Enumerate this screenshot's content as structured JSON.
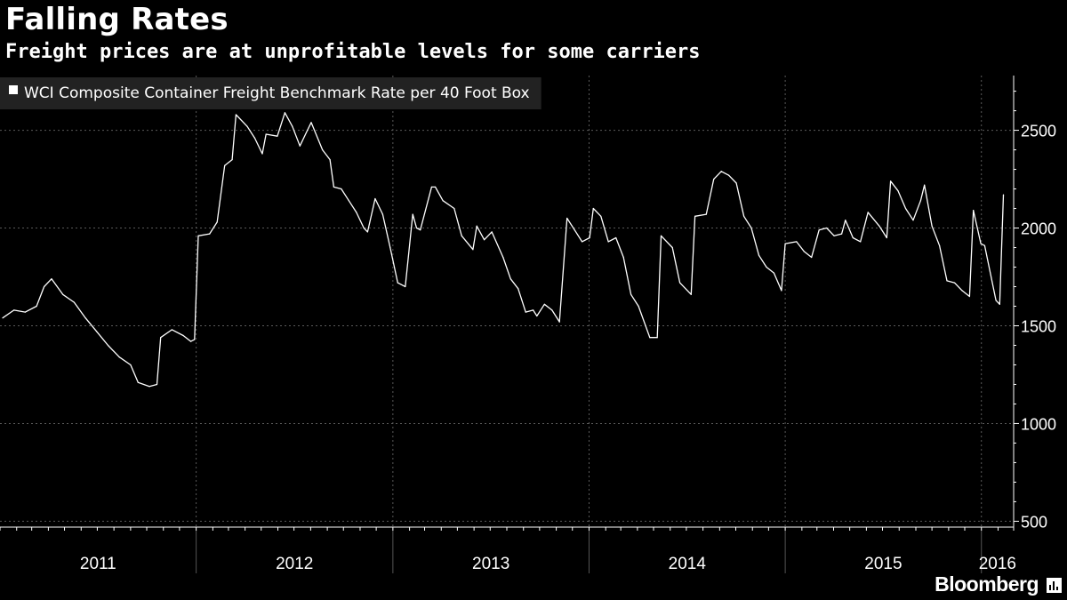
{
  "header": {
    "title": "Falling Rates",
    "subtitle": "Freight prices are at unprofitable levels for some carriers"
  },
  "footer": {
    "brand": "Bloomberg"
  },
  "colors": {
    "background": "#000000",
    "line": "#ffffff",
    "grid": "#5a5a5a",
    "legend_bg": "#222222"
  },
  "chart_data": {
    "type": "line",
    "legend_placement": "top-left",
    "grid": true,
    "y_axis_side": "right",
    "ylim": [
      470,
      2780
    ],
    "yticks": [
      500,
      1000,
      1500,
      2000,
      2500
    ],
    "xlim": [
      "2011-01-01",
      "2016-03-01"
    ],
    "x_year_labels": [
      "2011",
      "2012",
      "2013",
      "2014",
      "2015",
      "2016"
    ],
    "series": [
      {
        "name": "WCI Composite Container Freight Benchmark Rate per 40 Foot Box",
        "points": [
          [
            "2011-01-06",
            1540
          ],
          [
            "2011-01-27",
            1580
          ],
          [
            "2011-02-17",
            1570
          ],
          [
            "2011-03-10",
            1600
          ],
          [
            "2011-03-24",
            1700
          ],
          [
            "2011-04-07",
            1740
          ],
          [
            "2011-04-28",
            1660
          ],
          [
            "2011-05-19",
            1620
          ],
          [
            "2011-06-09",
            1540
          ],
          [
            "2011-06-30",
            1470
          ],
          [
            "2011-07-21",
            1400
          ],
          [
            "2011-08-11",
            1340
          ],
          [
            "2011-09-01",
            1300
          ],
          [
            "2011-09-15",
            1210
          ],
          [
            "2011-10-06",
            1190
          ],
          [
            "2011-10-20",
            1200
          ],
          [
            "2011-10-27",
            1440
          ],
          [
            "2011-11-17",
            1480
          ],
          [
            "2011-12-08",
            1450
          ],
          [
            "2011-12-22",
            1420
          ],
          [
            "2011-12-29",
            1430
          ],
          [
            "2012-01-05",
            1960
          ],
          [
            "2012-01-26",
            1970
          ],
          [
            "2012-02-09",
            2030
          ],
          [
            "2012-02-23",
            2320
          ],
          [
            "2012-03-08",
            2350
          ],
          [
            "2012-03-15",
            2580
          ],
          [
            "2012-04-05",
            2520
          ],
          [
            "2012-04-19",
            2460
          ],
          [
            "2012-05-03",
            2380
          ],
          [
            "2012-05-10",
            2480
          ],
          [
            "2012-05-31",
            2470
          ],
          [
            "2012-06-14",
            2590
          ],
          [
            "2012-06-28",
            2520
          ],
          [
            "2012-07-12",
            2420
          ],
          [
            "2012-07-26",
            2500
          ],
          [
            "2012-08-02",
            2540
          ],
          [
            "2012-08-23",
            2400
          ],
          [
            "2012-09-06",
            2350
          ],
          [
            "2012-09-13",
            2210
          ],
          [
            "2012-09-27",
            2200
          ],
          [
            "2012-10-11",
            2140
          ],
          [
            "2012-10-25",
            2080
          ],
          [
            "2012-11-08",
            2000
          ],
          [
            "2012-11-15",
            1980
          ],
          [
            "2012-11-29",
            2150
          ],
          [
            "2012-12-13",
            2070
          ],
          [
            "2012-12-27",
            1900
          ],
          [
            "2013-01-10",
            1720
          ],
          [
            "2013-01-24",
            1700
          ],
          [
            "2013-02-07",
            2070
          ],
          [
            "2013-02-14",
            2000
          ],
          [
            "2013-02-21",
            1990
          ],
          [
            "2013-03-14",
            2210
          ],
          [
            "2013-03-21",
            2210
          ],
          [
            "2013-04-04",
            2140
          ],
          [
            "2013-04-25",
            2100
          ],
          [
            "2013-05-09",
            1960
          ],
          [
            "2013-05-30",
            1890
          ],
          [
            "2013-06-06",
            2010
          ],
          [
            "2013-06-20",
            1940
          ],
          [
            "2013-07-04",
            1980
          ],
          [
            "2013-07-25",
            1850
          ],
          [
            "2013-08-08",
            1740
          ],
          [
            "2013-08-22",
            1690
          ],
          [
            "2013-09-05",
            1570
          ],
          [
            "2013-09-19",
            1580
          ],
          [
            "2013-09-26",
            1550
          ],
          [
            "2013-10-10",
            1610
          ],
          [
            "2013-10-24",
            1580
          ],
          [
            "2013-11-07",
            1520
          ],
          [
            "2013-11-21",
            2050
          ],
          [
            "2013-12-05",
            1990
          ],
          [
            "2013-12-19",
            1930
          ],
          [
            "2014-01-02",
            1950
          ],
          [
            "2014-01-09",
            2100
          ],
          [
            "2014-01-23",
            2060
          ],
          [
            "2014-02-06",
            1930
          ],
          [
            "2014-02-20",
            1950
          ],
          [
            "2014-03-06",
            1850
          ],
          [
            "2014-03-20",
            1660
          ],
          [
            "2014-04-03",
            1600
          ],
          [
            "2014-04-24",
            1440
          ],
          [
            "2014-05-08",
            1440
          ],
          [
            "2014-05-15",
            1960
          ],
          [
            "2014-06-05",
            1900
          ],
          [
            "2014-06-19",
            1720
          ],
          [
            "2014-07-10",
            1660
          ],
          [
            "2014-07-17",
            2060
          ],
          [
            "2014-08-07",
            2070
          ],
          [
            "2014-08-21",
            2250
          ],
          [
            "2014-09-04",
            2290
          ],
          [
            "2014-09-18",
            2270
          ],
          [
            "2014-10-02",
            2230
          ],
          [
            "2014-10-16",
            2060
          ],
          [
            "2014-10-30",
            2000
          ],
          [
            "2014-11-13",
            1860
          ],
          [
            "2014-11-27",
            1800
          ],
          [
            "2014-12-11",
            1770
          ],
          [
            "2014-12-25",
            1680
          ],
          [
            "2015-01-01",
            1920
          ],
          [
            "2015-01-22",
            1930
          ],
          [
            "2015-02-05",
            1880
          ],
          [
            "2015-02-19",
            1850
          ],
          [
            "2015-03-05",
            1990
          ],
          [
            "2015-03-19",
            2000
          ],
          [
            "2015-04-02",
            1960
          ],
          [
            "2015-04-16",
            1970
          ],
          [
            "2015-04-23",
            2040
          ],
          [
            "2015-05-07",
            1950
          ],
          [
            "2015-05-21",
            1930
          ],
          [
            "2015-06-04",
            2080
          ],
          [
            "2015-06-25",
            2010
          ],
          [
            "2015-07-09",
            1950
          ],
          [
            "2015-07-16",
            2240
          ],
          [
            "2015-07-30",
            2190
          ],
          [
            "2015-08-13",
            2100
          ],
          [
            "2015-08-27",
            2040
          ],
          [
            "2015-09-10",
            2140
          ],
          [
            "2015-09-17",
            2220
          ],
          [
            "2015-10-01",
            2010
          ],
          [
            "2015-10-15",
            1910
          ],
          [
            "2015-10-29",
            1730
          ],
          [
            "2015-11-12",
            1720
          ],
          [
            "2015-11-26",
            1680
          ],
          [
            "2015-12-10",
            1650
          ],
          [
            "2015-12-17",
            2090
          ],
          [
            "2015-12-31",
            1920
          ],
          [
            "2016-01-07",
            1910
          ],
          [
            "2016-01-28",
            1630
          ],
          [
            "2016-02-04",
            1610
          ],
          [
            "2016-02-11",
            2170
          ]
        ]
      }
    ]
  }
}
